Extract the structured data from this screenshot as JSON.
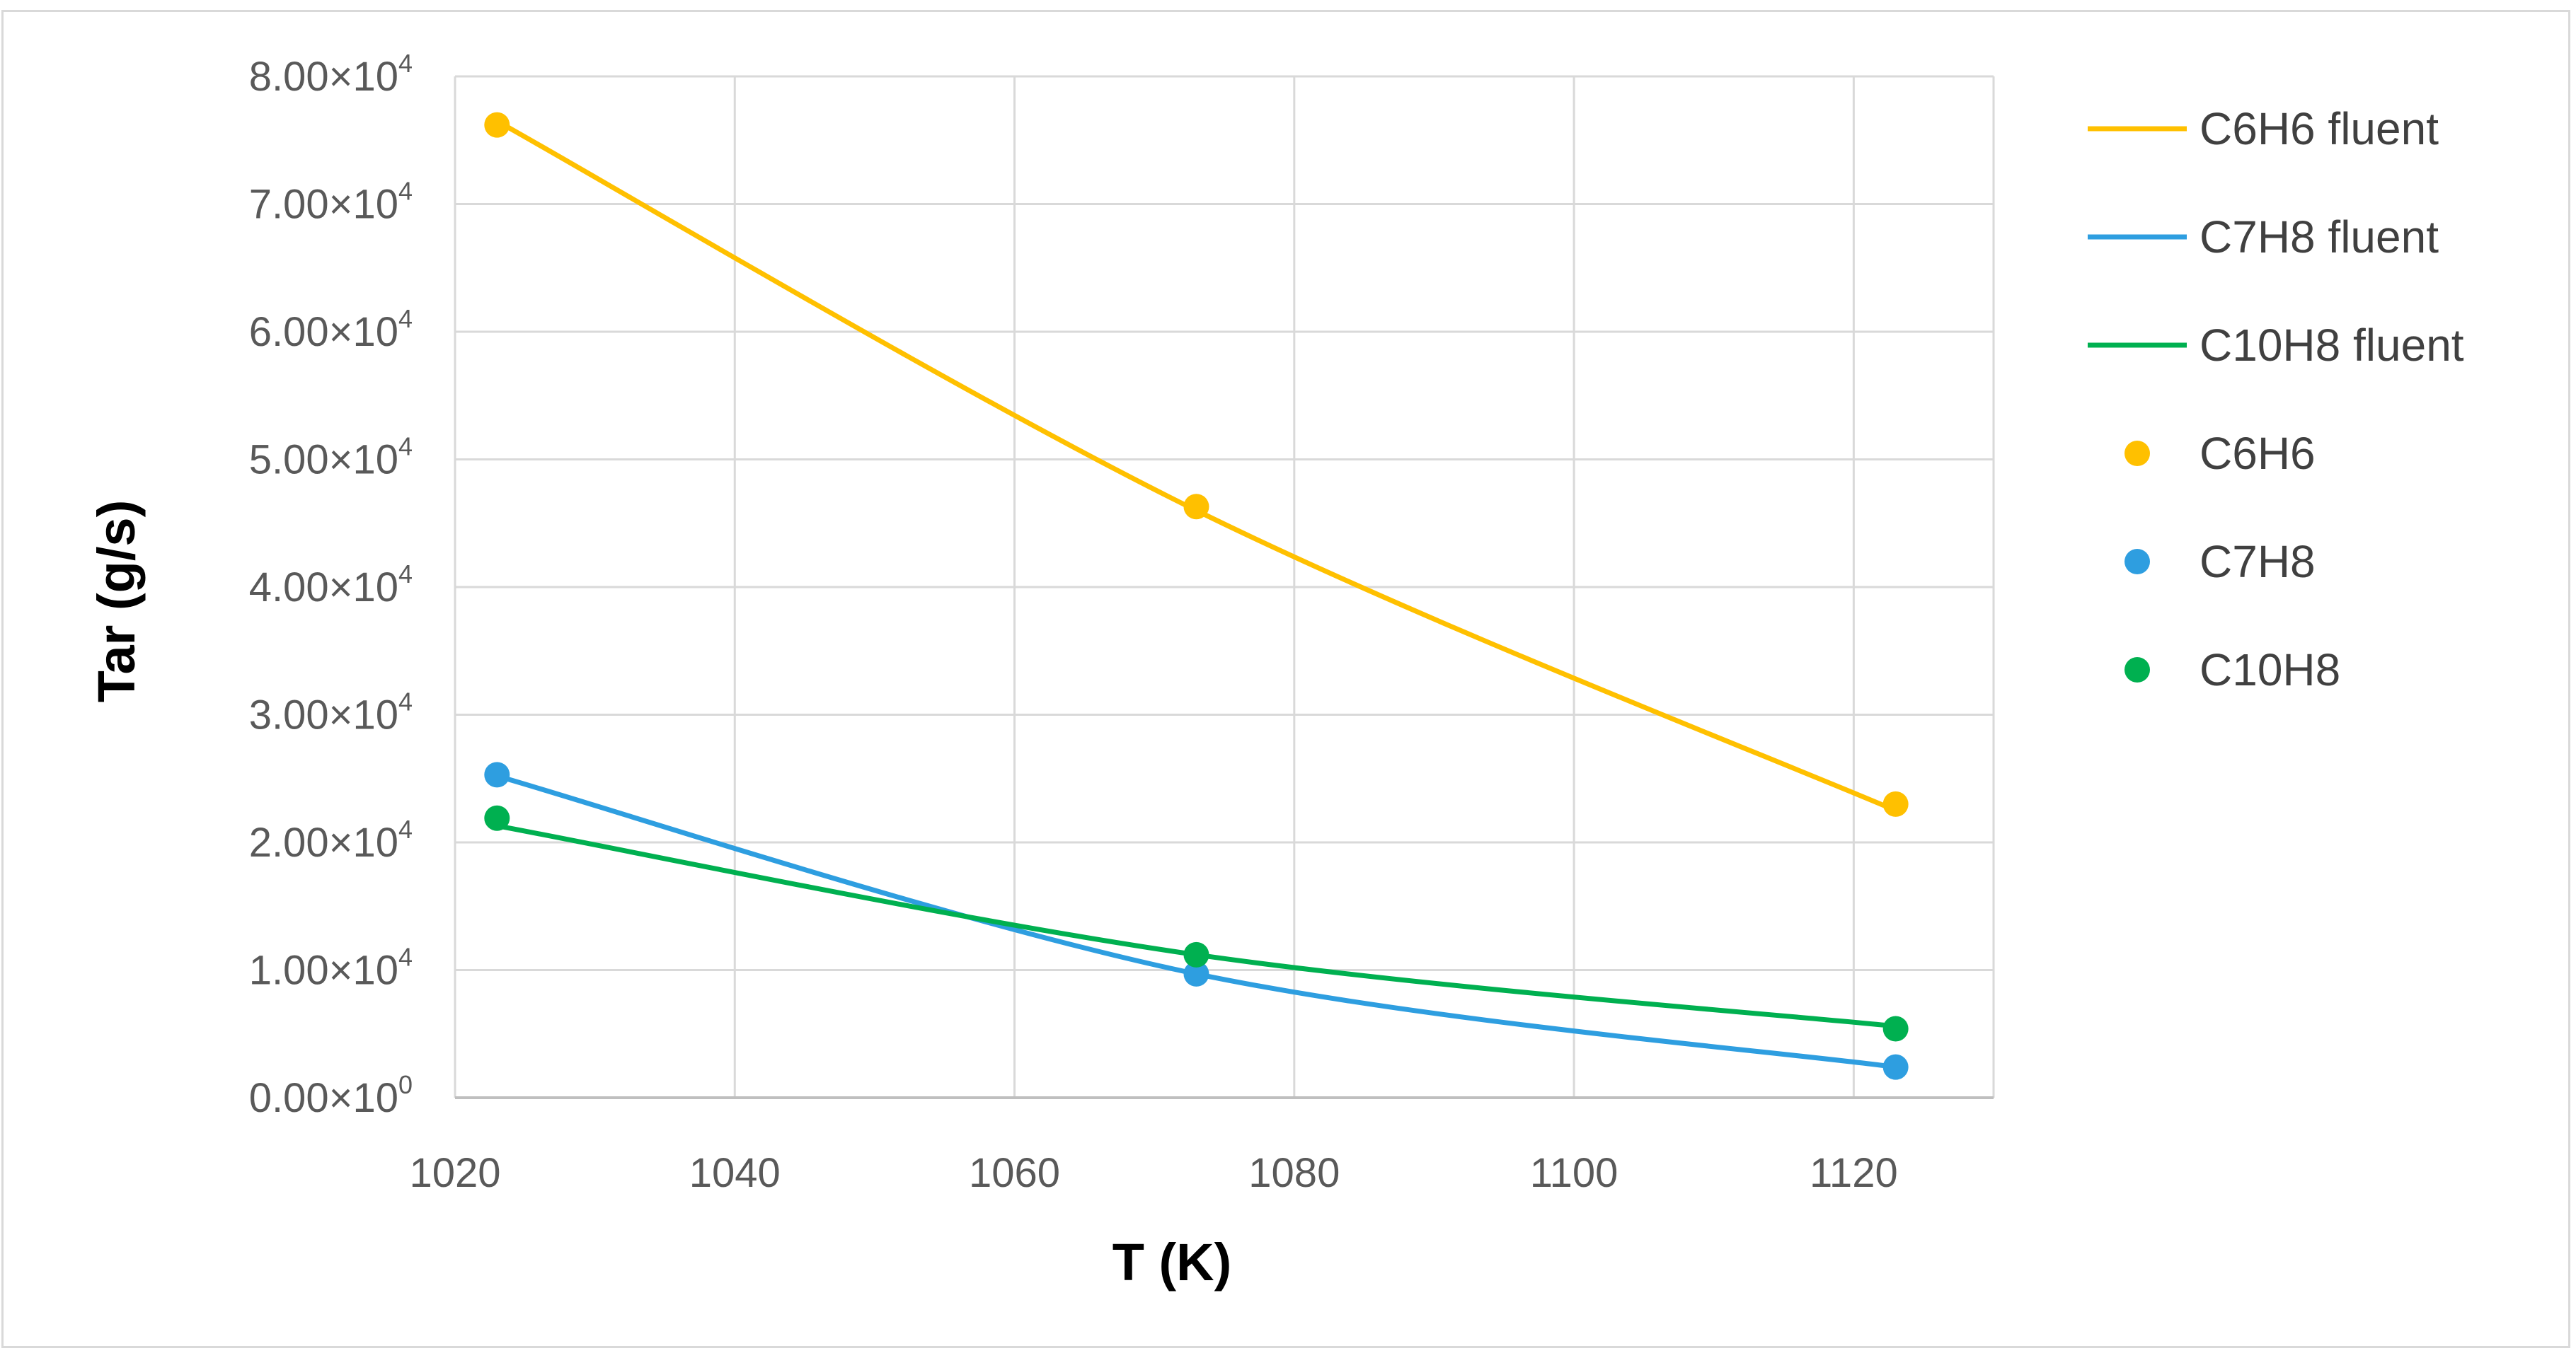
{
  "chart_data": {
    "type": "line",
    "xlabel": "T (K)",
    "ylabel": "Tar (g/s)",
    "xlim": [
      1020,
      1130
    ],
    "ylim": [
      0,
      80000
    ],
    "x_ticks": [
      1020,
      1040,
      1060,
      1080,
      1100,
      1120
    ],
    "x_tick_labels": [
      "1020",
      "1040",
      "1060",
      "1080",
      "1100",
      "1120"
    ],
    "y_ticks": [
      {
        "value": 0,
        "mantissa": "0.00",
        "exp": "0"
      },
      {
        "value": 10000,
        "mantissa": "1.00",
        "exp": "4"
      },
      {
        "value": 20000,
        "mantissa": "2.00",
        "exp": "4"
      },
      {
        "value": 30000,
        "mantissa": "3.00",
        "exp": "4"
      },
      {
        "value": 40000,
        "mantissa": "4.00",
        "exp": "4"
      },
      {
        "value": 50000,
        "mantissa": "5.00",
        "exp": "4"
      },
      {
        "value": 60000,
        "mantissa": "6.00",
        "exp": "4"
      },
      {
        "value": 70000,
        "mantissa": "7.00",
        "exp": "4"
      },
      {
        "value": 80000,
        "mantissa": "8.00",
        "exp": "4"
      }
    ],
    "grid": true,
    "legend_position": "right",
    "series": [
      {
        "name": "C6H6 fluent",
        "kind": "line",
        "color": "#ffc000",
        "x": [
          1023,
          1073,
          1123
        ],
        "y": [
          76500,
          46000,
          22500
        ]
      },
      {
        "name": "C7H8 fluent",
        "kind": "line",
        "color": "#2e9ee0",
        "x": [
          1023,
          1073,
          1123
        ],
        "y": [
          25200,
          9700,
          2400
        ]
      },
      {
        "name": "C10H8 fluent",
        "kind": "line",
        "color": "#00b050",
        "x": [
          1023,
          1073,
          1123
        ],
        "y": [
          21300,
          11200,
          5600
        ]
      },
      {
        "name": "C6H6",
        "kind": "scatter",
        "color": "#ffc000",
        "x": [
          1023,
          1073,
          1123
        ],
        "y": [
          76200,
          46300,
          23000
        ]
      },
      {
        "name": "C7H8",
        "kind": "scatter",
        "color": "#2e9ee0",
        "x": [
          1023,
          1073,
          1123
        ],
        "y": [
          25300,
          9700,
          2400
        ]
      },
      {
        "name": "C10H8",
        "kind": "scatter",
        "color": "#00b050",
        "x": [
          1023,
          1073,
          1123
        ],
        "y": [
          21900,
          11200,
          5400
        ]
      }
    ]
  }
}
